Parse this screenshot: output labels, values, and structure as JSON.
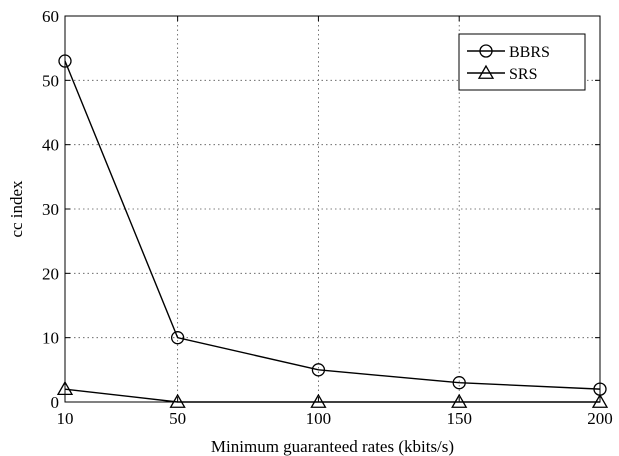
{
  "chart_data": {
    "type": "line",
    "title": "",
    "xlabel": "Minimum guaranteed rates (kbits/s)",
    "ylabel": "cc index",
    "x": [
      10,
      50,
      100,
      150,
      200
    ],
    "xlim": [
      10,
      200
    ],
    "ylim": [
      0,
      60
    ],
    "xticks": [
      10,
      50,
      100,
      150,
      200
    ],
    "yticks": [
      0,
      10,
      20,
      30,
      40,
      50,
      60
    ],
    "grid": true,
    "legend_position": "top-right",
    "series": [
      {
        "name": "BBRS",
        "marker": "circle",
        "values": [
          53,
          10,
          5,
          3,
          2
        ]
      },
      {
        "name": "SRS",
        "marker": "triangle",
        "values": [
          2,
          0,
          0,
          0,
          0
        ]
      }
    ]
  }
}
